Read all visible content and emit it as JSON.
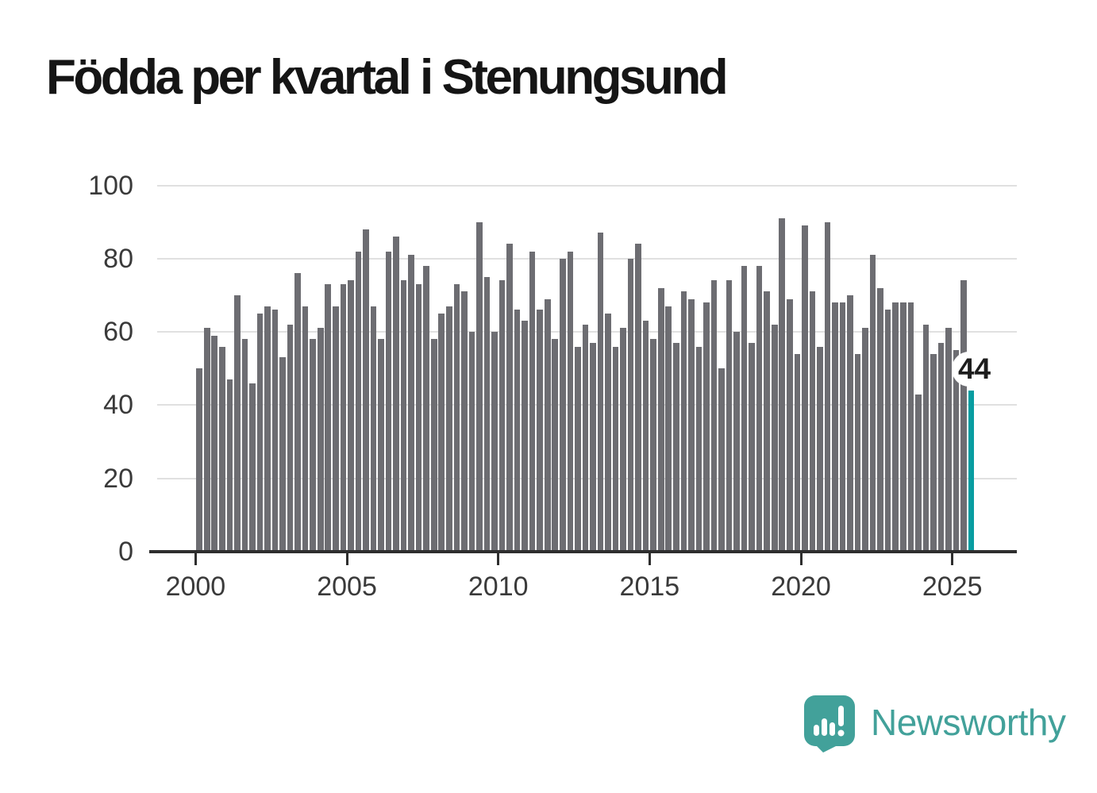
{
  "title": "Födda per kvartal i Stenungsund",
  "chart_data": {
    "type": "bar",
    "title": "Födda per kvartal i Stenungsund",
    "x_unit": "quarter",
    "start_period": "2000-Q1",
    "end_period": "2025-Q3",
    "x_tick_labels": [
      "2000",
      "2005",
      "2010",
      "2015",
      "2020",
      "2025"
    ],
    "y_tick_labels": [
      "0",
      "20",
      "40",
      "60",
      "80",
      "100"
    ],
    "ylim": [
      0,
      100
    ],
    "grid": "horizontal",
    "legend": "none",
    "values": [
      50,
      61,
      59,
      56,
      47,
      70,
      58,
      46,
      65,
      67,
      66,
      53,
      62,
      76,
      67,
      58,
      61,
      73,
      67,
      73,
      74,
      82,
      88,
      67,
      58,
      82,
      86,
      74,
      81,
      73,
      78,
      58,
      65,
      67,
      73,
      71,
      60,
      90,
      75,
      60,
      74,
      84,
      66,
      63,
      82,
      66,
      69,
      58,
      80,
      82,
      56,
      62,
      57,
      87,
      65,
      56,
      61,
      80,
      84,
      63,
      58,
      72,
      67,
      57,
      71,
      69,
      56,
      68,
      74,
      50,
      74,
      60,
      78,
      57,
      78,
      71,
      62,
      91,
      69,
      54,
      89,
      71,
      56,
      90,
      68,
      68,
      70,
      54,
      61,
      81,
      72,
      66,
      68,
      68,
      68,
      43,
      62,
      54,
      57,
      61,
      55,
      74,
      44
    ],
    "highlighted_last_bar": true,
    "last_value_label": "44",
    "bar_color": "#6d6d72",
    "highlight_color": "#089da1",
    "gridline_color": "#e0e0e0",
    "axis_color": "#2e2e2e",
    "tick_label_color": "#3a3a3a"
  },
  "annotation": {
    "text": "44"
  },
  "branding": {
    "name": "Newsworthy",
    "color": "#42a19a",
    "icon": "newsworthy-speech-bubble-chart-icon"
  }
}
